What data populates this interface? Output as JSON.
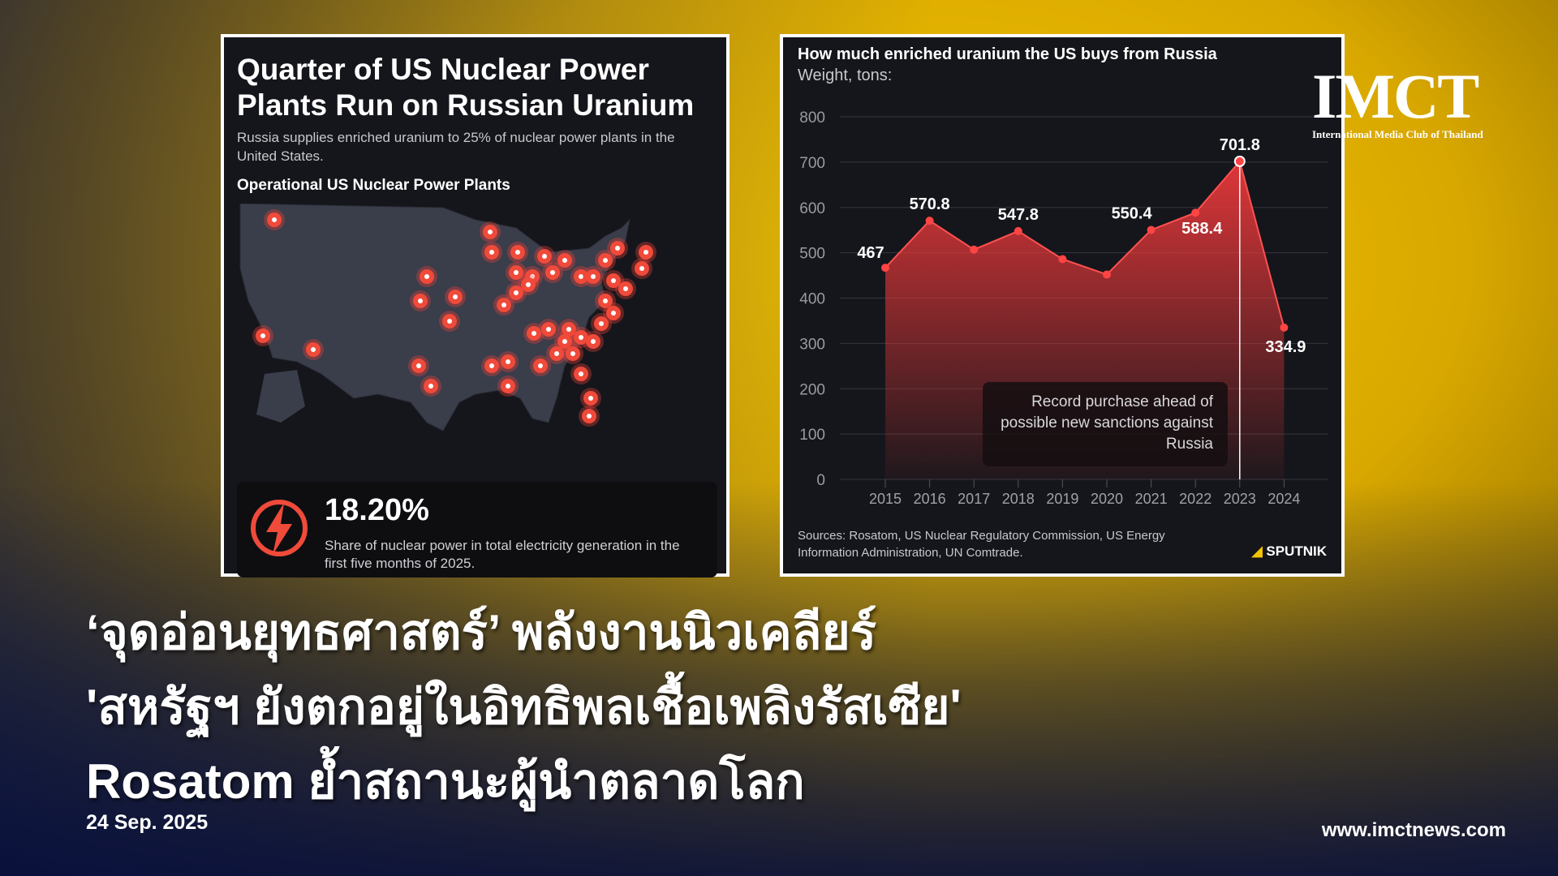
{
  "left_card": {
    "title": "Quarter of US Nuclear Power Plants Run on Russian Uranium",
    "subtitle": "Russia supplies enriched uranium to 25% of nuclear power plants in the United States.",
    "map_heading": "Operational US Nuclear Power Plants",
    "map_marker_icon": "radiation-icon",
    "stat_icon": "lightning-icon",
    "stat_value": "18.20%",
    "stat_description": "Share of nuclear power in total electricity generation in the first five months of 2025."
  },
  "chart_data": {
    "type": "area",
    "title": "How much enriched uranium the US buys from Russia",
    "subtitle": "Weight, tons:",
    "categories": [
      "2015",
      "2016",
      "2017",
      "2018",
      "2019",
      "2020",
      "2021",
      "2022",
      "2023",
      "2024"
    ],
    "values": [
      467,
      570.8,
      507,
      547.8,
      486,
      452,
      550.4,
      588.4,
      701.8,
      334.9
    ],
    "data_labels": [
      "467",
      "570.8",
      "",
      "547.8",
      "",
      "",
      "550.4",
      "588.4",
      "701.8",
      "334.9"
    ],
    "y_ticks": [
      "0",
      "100",
      "200",
      "300",
      "400",
      "500",
      "600",
      "700",
      "800"
    ],
    "ylim": [
      0,
      800
    ],
    "grid": true,
    "color": "#e8383a",
    "annotation": "Record purchase ahead of possible new sanctions against Russia",
    "sources": "Sources: Rosatom, US Nuclear Regulatory Commission, US Energy Information Administration, UN Comtrade.",
    "brand": "SPUTNIK"
  },
  "logo": {
    "text": "IMCT",
    "tagline": "International Media Club of Thailand"
  },
  "headline": {
    "line1": "‘จุดอ่อนยุทธศาสตร์’ พลังงานนิวเคลียร์",
    "line2": "'สหรัฐฯ ยังตกอยู่ในอิทธิพลเชื้อเพลิงรัสเซีย'",
    "line3": "Rosatom ย้ำสถานะผู้นำตลาดโลก"
  },
  "date": "24 Sep. 2025",
  "website": "www.imctnews.com"
}
